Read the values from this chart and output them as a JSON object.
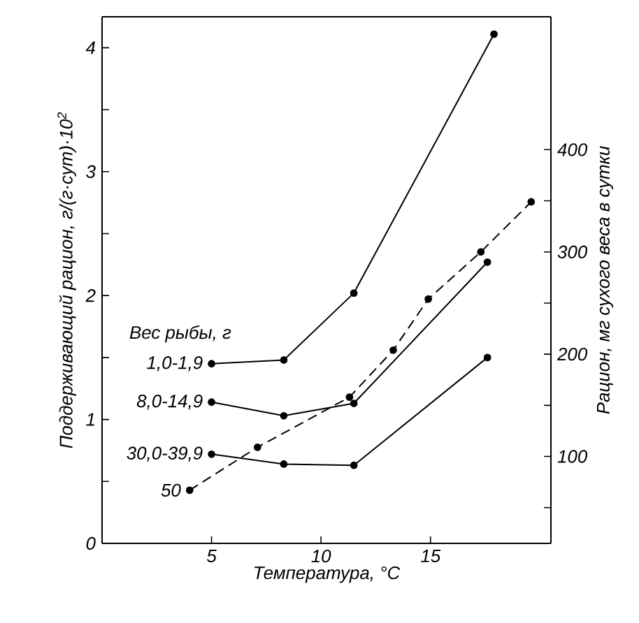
{
  "chart_data": {
    "type": "line",
    "xlabel": "Температура, °C",
    "ylabel": "Поддерживающий рацион, г/(г·сут)·10$^{2}$",
    "y2label": "Рацион, мг сухого веса в сутки",
    "legend_title": "Вес рыбы, г",
    "xlim": [
      0,
      20.5
    ],
    "xticks": [
      5,
      10,
      15
    ],
    "ylim": [
      0,
      4.25
    ],
    "yticks": [
      0,
      {
        "value": 0.5,
        "label": null
      },
      1,
      {
        "value": 1.5,
        "label": null
      },
      2,
      {
        "value": 2.5,
        "label": null
      },
      3,
      {
        "value": 3.5,
        "label": null
      },
      4
    ],
    "y2lim": [
      15,
      530
    ],
    "y2ticks": [
      {
        "value": 50,
        "label": null
      },
      100,
      {
        "value": 150,
        "label": null
      },
      200,
      {
        "value": 250,
        "label": null
      },
      300,
      {
        "value": 350,
        "label": null
      },
      400
    ],
    "marker": "circle",
    "series": [
      {
        "name": "1,0-1,9",
        "color": "#000000",
        "line_style": "solid",
        "x": [
          5.0,
          8.3,
          11.5,
          17.9
        ],
        "values": [
          1.45,
          1.48,
          2.02,
          4.11
        ]
      },
      {
        "name": "8,0-14,9",
        "color": "#000000",
        "line_style": "solid",
        "x": [
          5.0,
          8.3,
          11.5,
          17.6
        ],
        "values": [
          1.14,
          1.03,
          1.13,
          2.27
        ]
      },
      {
        "name": "30,0-39,9",
        "color": "#000000",
        "line_style": "solid",
        "x": [
          5.0,
          8.3,
          11.5,
          17.6
        ],
        "values": [
          0.72,
          0.64,
          0.63,
          1.5
        ]
      },
      {
        "name": "50",
        "color": "#000000",
        "line_style": "dashed",
        "axis": "y2",
        "x": [
          4.0,
          7.1,
          11.3,
          13.3,
          14.9,
          17.3,
          19.6
        ],
        "values": [
          67,
          109,
          158,
          204,
          254,
          300,
          349
        ]
      }
    ]
  }
}
